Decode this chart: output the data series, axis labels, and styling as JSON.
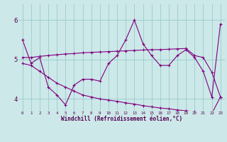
{
  "xlabel": "Windchill (Refroidissement éolien,°C)",
  "ylabel": "",
  "background_color": "#cce8e8",
  "line_color": "#800080",
  "grid_color": "#99cccc",
  "xlim": [
    -0.5,
    23.5
  ],
  "ylim": [
    3.7,
    6.4
  ],
  "yticks": [
    4,
    5,
    6
  ],
  "xticks": [
    0,
    1,
    2,
    3,
    4,
    5,
    6,
    7,
    8,
    9,
    10,
    11,
    12,
    13,
    14,
    15,
    16,
    17,
    18,
    19,
    20,
    21,
    22,
    23
  ],
  "series1": [
    5.5,
    4.9,
    5.05,
    4.3,
    4.1,
    3.85,
    4.35,
    4.5,
    4.5,
    4.45,
    4.9,
    5.1,
    5.5,
    6.0,
    5.4,
    5.1,
    4.85,
    4.85,
    5.1,
    5.25,
    5.05,
    4.7,
    4.05,
    5.9
  ],
  "series2": [
    5.05,
    5.05,
    5.08,
    5.1,
    5.12,
    5.14,
    5.15,
    5.17,
    5.18,
    5.19,
    5.2,
    5.21,
    5.22,
    5.23,
    5.24,
    5.25,
    5.25,
    5.26,
    5.27,
    5.28,
    5.1,
    5.05,
    4.68,
    4.05
  ],
  "series3": [
    4.9,
    4.85,
    4.7,
    4.55,
    4.4,
    4.3,
    4.2,
    4.1,
    4.05,
    4.0,
    3.97,
    3.94,
    3.9,
    3.87,
    3.83,
    3.8,
    3.77,
    3.75,
    3.72,
    3.7,
    3.68,
    3.65,
    3.63,
    4.05
  ]
}
